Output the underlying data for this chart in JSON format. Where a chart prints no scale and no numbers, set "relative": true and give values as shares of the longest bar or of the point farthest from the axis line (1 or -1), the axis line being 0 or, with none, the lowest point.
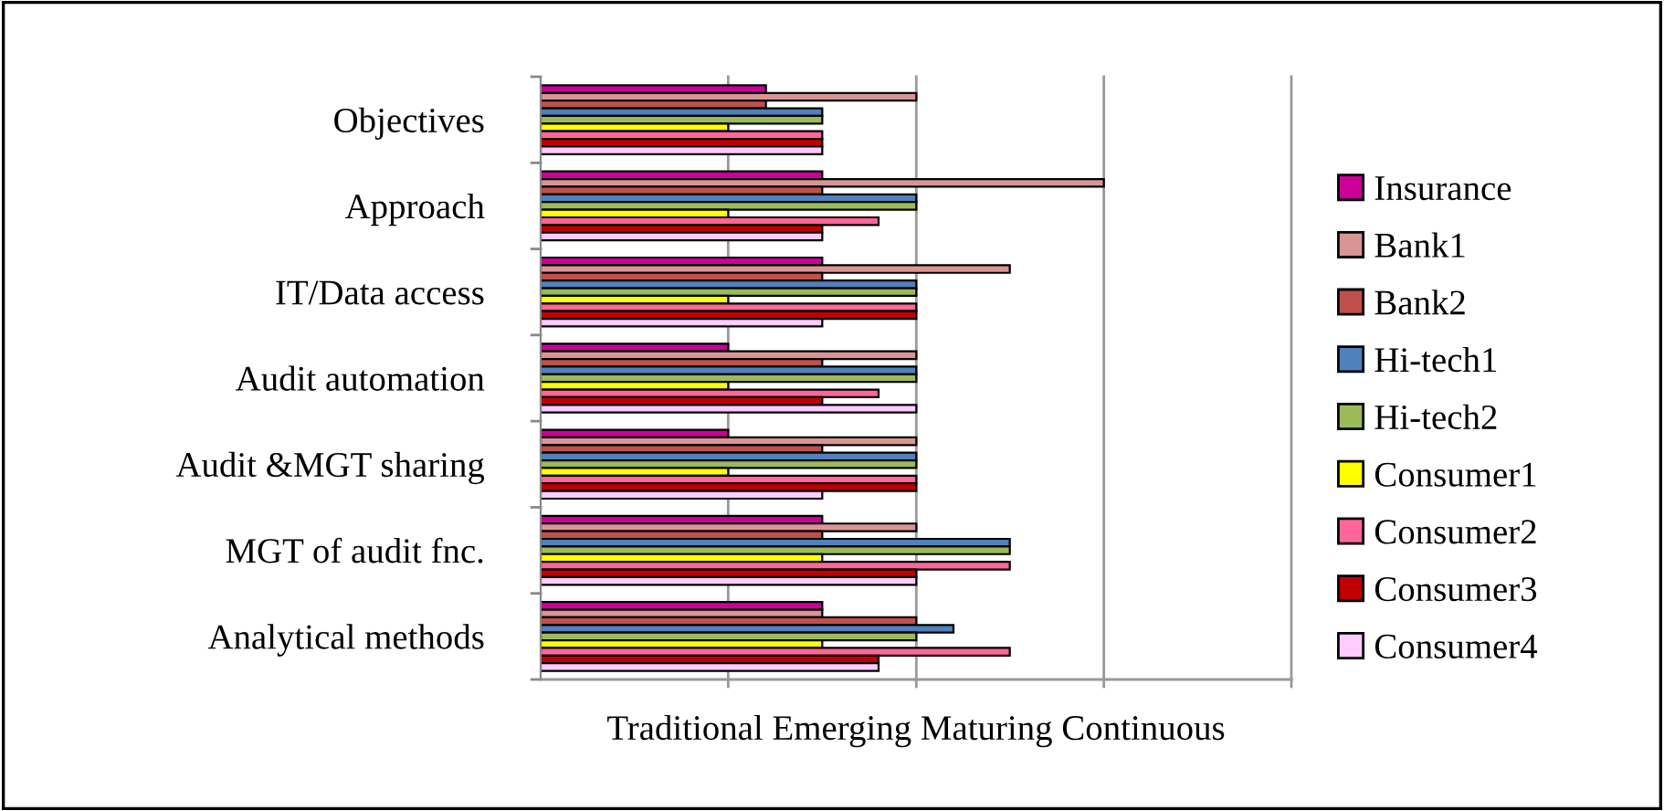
{
  "chart_data": {
    "type": "bar",
    "orientation": "horizontal",
    "relative": true,
    "xlabel": "Traditional Emerging Maturing Continuous",
    "categories": [
      "Objectives",
      "Approach",
      "IT/Data access",
      "Audit automation",
      "Audit &MGT sharing",
      "MGT of audit fnc.",
      "Analytical methods"
    ],
    "series": [
      {
        "name": "Insurance",
        "color": "#cc0099",
        "values": [
          0.4,
          0.5,
          0.5,
          0.333,
          0.333,
          0.5,
          0.5
        ]
      },
      {
        "name": "Bank1",
        "color": "#d99594",
        "values": [
          0.667,
          1,
          0.833,
          0.667,
          0.667,
          0.667,
          0.5
        ]
      },
      {
        "name": "Bank2",
        "color": "#c0504d",
        "values": [
          0.4,
          0.5,
          0.5,
          0.5,
          0.5,
          0.5,
          0.667
        ]
      },
      {
        "name": "Hi-tech1",
        "color": "#4f81bd",
        "values": [
          0.5,
          0.667,
          0.667,
          0.667,
          0.667,
          0.833,
          0.733
        ]
      },
      {
        "name": "Hi-tech2",
        "color": "#9bbb59",
        "values": [
          0.5,
          0.667,
          0.667,
          0.667,
          0.667,
          0.833,
          0.667
        ]
      },
      {
        "name": "Consumer1",
        "color": "#ffff00",
        "values": [
          0.333,
          0.333,
          0.333,
          0.333,
          0.333,
          0.5,
          0.5
        ]
      },
      {
        "name": "Consumer2",
        "color": "#ff6699",
        "values": [
          0.5,
          0.6,
          0.667,
          0.6,
          0.667,
          0.833,
          0.833
        ]
      },
      {
        "name": "Consumer3",
        "color": "#c00000",
        "values": [
          0.5,
          0.5,
          0.667,
          0.5,
          0.667,
          0.667,
          0.6
        ]
      },
      {
        "name": "Consumer4",
        "color": "#ffccff",
        "values": [
          0.5,
          0.5,
          0.5,
          0.667,
          0.5,
          0.667,
          0.6
        ]
      }
    ],
    "ref_lines": [
      {
        "axis": "x",
        "value": 0.333,
        "color": "#999999"
      },
      {
        "axis": "x",
        "value": 0.667,
        "color": "#999999"
      },
      {
        "axis": "x",
        "value": 1,
        "color": "#999999"
      },
      {
        "axis": "x",
        "value": 1.333,
        "color": "#999999"
      }
    ],
    "legend": "right"
  }
}
